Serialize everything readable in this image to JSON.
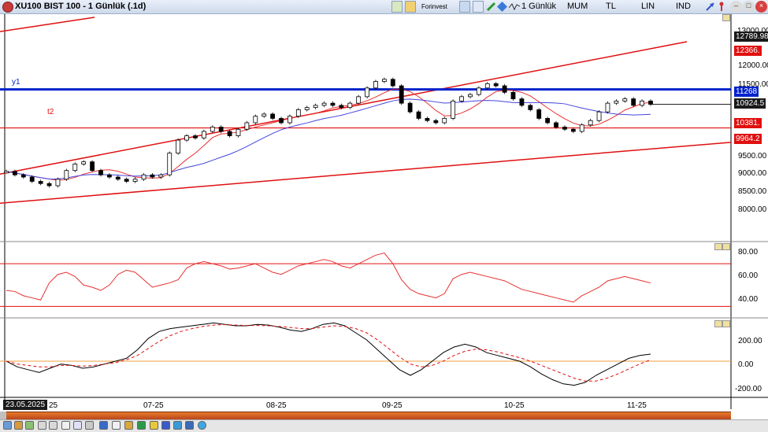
{
  "window": {
    "title": "XU100 BIST 100 - 1 Günlük (.1d)",
    "toolbar": {
      "forinvest_label": "Forinvest",
      "period_label": "1 Günlük",
      "candle_label": "MUM",
      "currency_label": "TL",
      "scale_label": "LIN",
      "mode_label": "IND"
    }
  },
  "colors": {
    "channel": "#e01010",
    "horizontal_blue": "#0022cc",
    "ma_red": "#e83030",
    "ma_blue": "#4444dd",
    "scrollbar": "#e07020"
  },
  "price_axis": {
    "ticks": [
      "12000.00",
      "11500.00",
      "11000.00",
      "10500.00",
      "10000.00",
      "9500.00",
      "9000.00",
      "8500.00",
      "8000.00"
    ],
    "hidden_top": "13000.00",
    "tag_last": "12789.98",
    "tag_upper": "12366.",
    "tag_h1": "11268",
    "tag_close": "10924.5",
    "tag_h2": "10381.",
    "tag_lower": "9964.2"
  },
  "annotations": {
    "y1": "y1",
    "t2": "t2"
  },
  "rsi_axis": {
    "ticks": [
      "80.00",
      "60.00",
      "40.00"
    ]
  },
  "macd_axis": {
    "ticks": [
      "200.00",
      "0.00",
      "-200.00"
    ]
  },
  "date_axis": {
    "badge": "23.05.2025",
    "labels": [
      "25",
      "07-25",
      "08-25",
      "09-25",
      "10-25",
      "11-25"
    ]
  },
  "chart_data": {
    "type": "line",
    "price_candles_close": [
      9380,
      9300,
      9250,
      9150,
      9100,
      9050,
      9200,
      9400,
      9550,
      9600,
      9400,
      9300,
      9250,
      9200,
      9150,
      9200,
      9300,
      9250,
      9300,
      9800,
      10100,
      10200,
      10150,
      10300,
      10400,
      10300,
      10200,
      10350,
      10500,
      10650,
      10700,
      10600,
      10500,
      10650,
      10800,
      10850,
      10900,
      10950,
      10900,
      10850,
      10950,
      11100,
      11300,
      11450,
      11500,
      11350,
      10950,
      10750,
      10600,
      10550,
      10500,
      10600,
      11000,
      11100,
      11150,
      11300,
      11400,
      11350,
      11200,
      11050,
      10900,
      10800,
      10600,
      10500,
      10400,
      10350,
      10300,
      10450,
      10550,
      10750,
      10950,
      11000,
      11050,
      10900,
      11000,
      10924.5
    ],
    "rsi": [
      45,
      44,
      40,
      38,
      36,
      52,
      60,
      62,
      58,
      50,
      48,
      45,
      50,
      60,
      64,
      62,
      55,
      48,
      50,
      52,
      55,
      66,
      70,
      72,
      70,
      68,
      65,
      66,
      68,
      70,
      66,
      62,
      60,
      64,
      68,
      70,
      72,
      74,
      72,
      68,
      66,
      70,
      74,
      78,
      80,
      70,
      55,
      46,
      42,
      40,
      38,
      42,
      56,
      60,
      62,
      60,
      58,
      56,
      54,
      50,
      46,
      44,
      42,
      40,
      38,
      36,
      34,
      40,
      44,
      48,
      54,
      56,
      58,
      56,
      54,
      52
    ],
    "rsi_levels": [
      70,
      30
    ],
    "macd": [
      0,
      -40,
      -60,
      -80,
      -50,
      -20,
      -30,
      -50,
      -40,
      -20,
      0,
      20,
      80,
      160,
      210,
      230,
      240,
      250,
      260,
      270,
      260,
      250,
      250,
      260,
      255,
      240,
      220,
      210,
      230,
      260,
      270,
      250,
      200,
      150,
      80,
      10,
      -60,
      -100,
      -60,
      0,
      60,
      100,
      120,
      100,
      60,
      40,
      20,
      0,
      -40,
      -90,
      -130,
      -160,
      -170,
      -150,
      -100,
      -60,
      -20,
      20,
      40,
      50
    ],
    "macd_signal": [
      0,
      -20,
      -30,
      -40,
      -40,
      -30,
      -30,
      -35,
      -30,
      -20,
      -10,
      10,
      40,
      90,
      140,
      180,
      210,
      230,
      245,
      255,
      258,
      255,
      252,
      252,
      250,
      245,
      238,
      230,
      230,
      240,
      250,
      245,
      230,
      200,
      150,
      90,
      30,
      -20,
      -40,
      -30,
      0,
      40,
      70,
      85,
      80,
      65,
      45,
      25,
      0,
      -30,
      -60,
      -90,
      -120,
      -140,
      -140,
      -120,
      -90,
      -55,
      -20,
      10
    ],
    "y_range_price": [
      7800,
      13000
    ],
    "y_range_rsi": [
      20,
      90
    ],
    "y_range_macd": [
      -250,
      300
    ],
    "x_labels": [
      "25",
      "07-25",
      "08-25",
      "09-25",
      "10-25",
      "11-25"
    ]
  }
}
